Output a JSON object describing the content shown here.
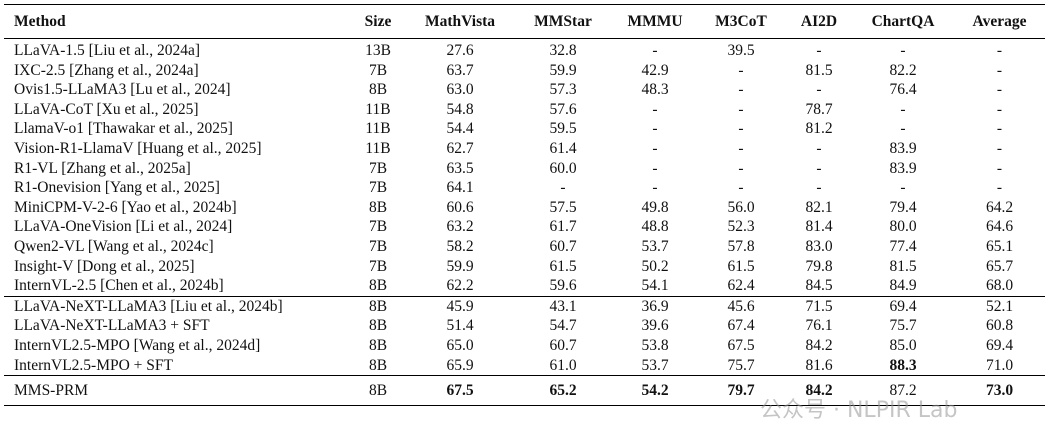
{
  "table": {
    "header": [
      "Method",
      "Size",
      "MathVista",
      "MMStar",
      "MMMU",
      "M3CoT",
      "AI2D",
      "ChartQA",
      "Average"
    ],
    "groups": [
      [
        [
          "LLaVA-1.5 [Liu et al., 2024a]",
          "13B",
          "27.6",
          "32.8",
          "-",
          "39.5",
          "-",
          "-",
          "-"
        ],
        [
          "IXC-2.5 [Zhang et al., 2024a]",
          "7B",
          "63.7",
          "59.9",
          "42.9",
          "-",
          "81.5",
          "82.2",
          "-"
        ],
        [
          "Ovis1.5-LLaMA3 [Lu et al., 2024]",
          "8B",
          "63.0",
          "57.3",
          "48.3",
          "-",
          "-",
          "76.4",
          "-"
        ],
        [
          "LLaVA-CoT [Xu et al., 2025]",
          "11B",
          "54.8",
          "57.6",
          "-",
          "-",
          "78.7",
          "-",
          "-"
        ],
        [
          "LlamaV-o1 [Thawakar et al., 2025]",
          "11B",
          "54.4",
          "59.5",
          "-",
          "-",
          "81.2",
          "-",
          "-"
        ],
        [
          "Vision-R1-LlamaV [Huang et al., 2025]",
          "11B",
          "62.7",
          "61.4",
          "-",
          "-",
          "-",
          "83.9",
          "-"
        ],
        [
          "R1-VL [Zhang et al., 2025a]",
          "7B",
          "63.5",
          "60.0",
          "-",
          "-",
          "-",
          "83.9",
          "-"
        ],
        [
          "R1-Onevision [Yang et al., 2025]",
          "7B",
          "64.1",
          "-",
          "-",
          "-",
          "-",
          "-",
          "-"
        ],
        [
          "MiniCPM-V-2-6 [Yao et al., 2024b]",
          "8B",
          "60.6",
          "57.5",
          "49.8",
          "56.0",
          "82.1",
          "79.4",
          "64.2"
        ],
        [
          "LLaVA-OneVision [Li et al., 2024]",
          "7B",
          "63.2",
          "61.7",
          "48.8",
          "52.3",
          "81.4",
          "80.0",
          "64.6"
        ],
        [
          "Qwen2-VL [Wang et al., 2024c]",
          "7B",
          "58.2",
          "60.7",
          "53.7",
          "57.8",
          "83.0",
          "77.4",
          "65.1"
        ],
        [
          "Insight-V [Dong et al., 2025]",
          "7B",
          "59.9",
          "61.5",
          "50.2",
          "61.5",
          "79.8",
          "81.5",
          "65.7"
        ],
        [
          "InternVL-2.5 [Chen et al., 2024b]",
          "8B",
          "62.2",
          "59.6",
          "54.1",
          "62.4",
          "84.5",
          "84.9",
          "68.0"
        ]
      ],
      [
        [
          "LLaVA-NeXT-LLaMA3 [Liu et al., 2024b]",
          "8B",
          "45.9",
          "43.1",
          "36.9",
          "45.6",
          "71.5",
          "69.4",
          "52.1"
        ],
        [
          "LLaVA-NeXT-LLaMA3 + SFT",
          "8B",
          "51.4",
          "54.7",
          "39.6",
          "67.4",
          "76.1",
          "75.7",
          "60.8"
        ],
        [
          "InternVL2.5-MPO [Wang et al., 2024d]",
          "8B",
          "65.0",
          "60.7",
          "53.8",
          "67.5",
          "84.2",
          "85.0",
          "69.4"
        ],
        [
          "InternVL2.5-MPO + SFT",
          "8B",
          "65.9",
          "61.0",
          "53.7",
          "75.7",
          "81.6",
          "88.3",
          "71.0"
        ]
      ],
      [
        [
          "MMS-PRM",
          "8B",
          "67.5",
          "65.2",
          "54.2",
          "79.7",
          "84.2",
          "87.2",
          "73.0"
        ]
      ]
    ]
  },
  "watermark": "公众号 · NLPIR Lab"
}
